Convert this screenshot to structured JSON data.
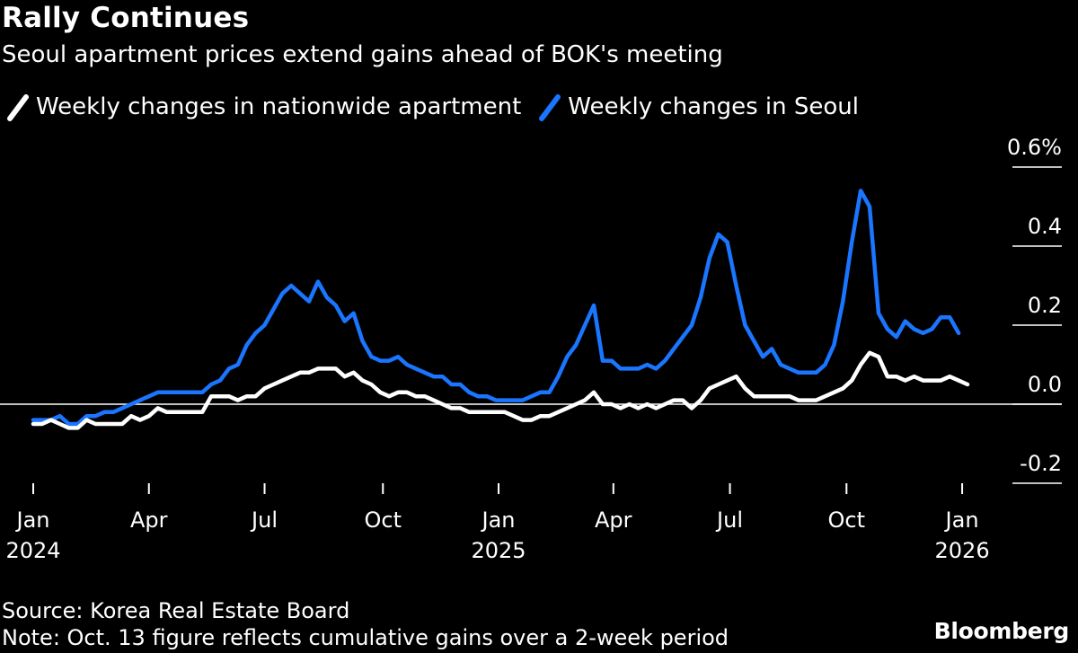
{
  "header": {
    "title": "Rally Continues",
    "subtitle": "Seoul apartment prices extend gains ahead of BOK's meeting"
  },
  "legend": [
    {
      "label": "Weekly changes in nationwide apartment",
      "color": "#ffffff"
    },
    {
      "label": "Weekly changes in Seoul",
      "color": "#1a75ff"
    }
  ],
  "footer": {
    "source": "Source: Korea Real Estate Board",
    "note": "Note: Oct. 13 figure reflects cumulative gains over a 2-week period",
    "brand": "Bloomberg"
  },
  "chart_data": {
    "type": "line",
    "title": "Rally Continues",
    "subtitle": "Seoul apartment prices extend gains ahead of BOK's meeting",
    "x_unit": "weeks since first week of Jan 2024",
    "x_range": [
      0,
      105
    ],
    "ylim": [
      -0.2,
      0.6
    ],
    "y_ticks": [
      {
        "value": 0.6,
        "label": "0.6%"
      },
      {
        "value": 0.4,
        "label": "0.4"
      },
      {
        "value": 0.2,
        "label": "0.2"
      },
      {
        "value": 0.0,
        "label": "0.0"
      },
      {
        "value": -0.2,
        "label": "-0.2"
      }
    ],
    "x_ticks": [
      {
        "x": 0,
        "label": "Jan",
        "sublabel": "2024"
      },
      {
        "x": 13,
        "label": "Apr",
        "sublabel": ""
      },
      {
        "x": 26,
        "label": "Jul",
        "sublabel": ""
      },
      {
        "x": 39.3,
        "label": "Oct",
        "sublabel": ""
      },
      {
        "x": 52.3,
        "label": "Jan",
        "sublabel": "2025"
      },
      {
        "x": 65.2,
        "label": "Apr",
        "sublabel": ""
      },
      {
        "x": 78.3,
        "label": "Jul",
        "sublabel": ""
      },
      {
        "x": 91.4,
        "label": "Oct",
        "sublabel": ""
      },
      {
        "x": 104.4,
        "label": "Jan",
        "sublabel": "2026"
      }
    ],
    "zero_line": true,
    "legend_position": "top-left",
    "series": [
      {
        "name": "Weekly changes in Seoul",
        "color": "#1a75ff",
        "points": [
          [
            0,
            -0.04
          ],
          [
            2,
            -0.04
          ],
          [
            3,
            -0.03
          ],
          [
            4,
            -0.05
          ],
          [
            5,
            -0.05
          ],
          [
            6,
            -0.03
          ],
          [
            7,
            -0.03
          ],
          [
            8,
            -0.02
          ],
          [
            9,
            -0.02
          ],
          [
            10,
            -0.01
          ],
          [
            11,
            0.0
          ],
          [
            12,
            0.01
          ],
          [
            13,
            0.02
          ],
          [
            14,
            0.03
          ],
          [
            15,
            0.03
          ],
          [
            16,
            0.03
          ],
          [
            17,
            0.03
          ],
          [
            18,
            0.03
          ],
          [
            19,
            0.03
          ],
          [
            20,
            0.05
          ],
          [
            21,
            0.06
          ],
          [
            22,
            0.09
          ],
          [
            23,
            0.1
          ],
          [
            24,
            0.15
          ],
          [
            25,
            0.18
          ],
          [
            26,
            0.2
          ],
          [
            27,
            0.24
          ],
          [
            28,
            0.28
          ],
          [
            29,
            0.3
          ],
          [
            30,
            0.28
          ],
          [
            31,
            0.26
          ],
          [
            32,
            0.31
          ],
          [
            33,
            0.27
          ],
          [
            34,
            0.25
          ],
          [
            35,
            0.21
          ],
          [
            36,
            0.23
          ],
          [
            37,
            0.16
          ],
          [
            38,
            0.12
          ],
          [
            39,
            0.11
          ],
          [
            40,
            0.11
          ],
          [
            41,
            0.12
          ],
          [
            42,
            0.1
          ],
          [
            43,
            0.09
          ],
          [
            44,
            0.08
          ],
          [
            45,
            0.07
          ],
          [
            46,
            0.07
          ],
          [
            47,
            0.05
          ],
          [
            48,
            0.05
          ],
          [
            49,
            0.03
          ],
          [
            50,
            0.02
          ],
          [
            51,
            0.02
          ],
          [
            52,
            0.01
          ],
          [
            53,
            0.01
          ],
          [
            54,
            0.01
          ],
          [
            55,
            0.01
          ],
          [
            56,
            0.02
          ],
          [
            57,
            0.03
          ],
          [
            58,
            0.03
          ],
          [
            59,
            0.07
          ],
          [
            60,
            0.12
          ],
          [
            61,
            0.15
          ],
          [
            62,
            0.2
          ],
          [
            63,
            0.25
          ],
          [
            64,
            0.11
          ],
          [
            65,
            0.11
          ],
          [
            66,
            0.09
          ],
          [
            67,
            0.09
          ],
          [
            68,
            0.09
          ],
          [
            69,
            0.1
          ],
          [
            70,
            0.09
          ],
          [
            71,
            0.11
          ],
          [
            72,
            0.14
          ],
          [
            73,
            0.17
          ],
          [
            74,
            0.2
          ],
          [
            75,
            0.27
          ],
          [
            76,
            0.37
          ],
          [
            77,
            0.43
          ],
          [
            78,
            0.41
          ],
          [
            79,
            0.3
          ],
          [
            80,
            0.2
          ],
          [
            81,
            0.16
          ],
          [
            82,
            0.12
          ],
          [
            83,
            0.14
          ],
          [
            84,
            0.1
          ],
          [
            85,
            0.09
          ],
          [
            86,
            0.08
          ],
          [
            87,
            0.08
          ],
          [
            88,
            0.08
          ],
          [
            89,
            0.1
          ],
          [
            90,
            0.15
          ],
          [
            91,
            0.26
          ],
          [
            92,
            0.41
          ],
          [
            93,
            0.54
          ],
          [
            94,
            0.5
          ],
          [
            95,
            0.23
          ],
          [
            96,
            0.19
          ],
          [
            97,
            0.17
          ],
          [
            98,
            0.21
          ],
          [
            99,
            0.19
          ],
          [
            100,
            0.18
          ],
          [
            101,
            0.19
          ],
          [
            102,
            0.22
          ],
          [
            103,
            0.22
          ],
          [
            104,
            0.18
          ]
        ]
      },
      {
        "name": "Weekly changes in nationwide apartment",
        "color": "#ffffff",
        "points": [
          [
            0,
            -0.05
          ],
          [
            1,
            -0.05
          ],
          [
            2,
            -0.04
          ],
          [
            3,
            -0.05
          ],
          [
            4,
            -0.06
          ],
          [
            5,
            -0.06
          ],
          [
            6,
            -0.04
          ],
          [
            7,
            -0.05
          ],
          [
            8,
            -0.05
          ],
          [
            9,
            -0.05
          ],
          [
            10,
            -0.05
          ],
          [
            11,
            -0.03
          ],
          [
            12,
            -0.04
          ],
          [
            13,
            -0.03
          ],
          [
            14,
            -0.01
          ],
          [
            15,
            -0.02
          ],
          [
            16,
            -0.02
          ],
          [
            17,
            -0.02
          ],
          [
            18,
            -0.02
          ],
          [
            19,
            -0.02
          ],
          [
            20,
            0.02
          ],
          [
            21,
            0.02
          ],
          [
            22,
            0.02
          ],
          [
            23,
            0.01
          ],
          [
            24,
            0.02
          ],
          [
            25,
            0.02
          ],
          [
            26,
            0.04
          ],
          [
            27,
            0.05
          ],
          [
            28,
            0.06
          ],
          [
            29,
            0.07
          ],
          [
            30,
            0.08
          ],
          [
            31,
            0.08
          ],
          [
            32,
            0.09
          ],
          [
            33,
            0.09
          ],
          [
            34,
            0.09
          ],
          [
            35,
            0.07
          ],
          [
            36,
            0.08
          ],
          [
            37,
            0.06
          ],
          [
            38,
            0.05
          ],
          [
            39,
            0.03
          ],
          [
            40,
            0.02
          ],
          [
            41,
            0.03
          ],
          [
            42,
            0.03
          ],
          [
            43,
            0.02
          ],
          [
            44,
            0.02
          ],
          [
            45,
            0.01
          ],
          [
            46,
            0.0
          ],
          [
            47,
            -0.01
          ],
          [
            48,
            -0.01
          ],
          [
            49,
            -0.02
          ],
          [
            50,
            -0.02
          ],
          [
            51,
            -0.02
          ],
          [
            52,
            -0.02
          ],
          [
            53,
            -0.02
          ],
          [
            54,
            -0.03
          ],
          [
            55,
            -0.04
          ],
          [
            56,
            -0.04
          ],
          [
            57,
            -0.03
          ],
          [
            58,
            -0.03
          ],
          [
            59,
            -0.02
          ],
          [
            60,
            -0.01
          ],
          [
            61,
            0.0
          ],
          [
            62,
            0.01
          ],
          [
            63,
            0.03
          ],
          [
            64,
            0.0
          ],
          [
            65,
            0.0
          ],
          [
            66,
            -0.01
          ],
          [
            67,
            0.0
          ],
          [
            68,
            -0.01
          ],
          [
            69,
            0.0
          ],
          [
            70,
            -0.01
          ],
          [
            71,
            0.0
          ],
          [
            72,
            0.01
          ],
          [
            73,
            0.01
          ],
          [
            74,
            -0.01
          ],
          [
            75,
            0.01
          ],
          [
            76,
            0.04
          ],
          [
            77,
            0.05
          ],
          [
            78,
            0.06
          ],
          [
            79,
            0.07
          ],
          [
            80,
            0.04
          ],
          [
            81,
            0.02
          ],
          [
            82,
            0.02
          ],
          [
            83,
            0.02
          ],
          [
            84,
            0.02
          ],
          [
            85,
            0.02
          ],
          [
            86,
            0.01
          ],
          [
            87,
            0.01
          ],
          [
            88,
            0.01
          ],
          [
            89,
            0.02
          ],
          [
            90,
            0.03
          ],
          [
            91,
            0.04
          ],
          [
            92,
            0.06
          ],
          [
            93,
            0.1
          ],
          [
            94,
            0.13
          ],
          [
            95,
            0.12
          ],
          [
            96,
            0.07
          ],
          [
            97,
            0.07
          ],
          [
            98,
            0.06
          ],
          [
            99,
            0.07
          ],
          [
            100,
            0.06
          ],
          [
            101,
            0.06
          ],
          [
            102,
            0.06
          ],
          [
            103,
            0.07
          ],
          [
            104,
            0.06
          ],
          [
            105,
            0.05
          ]
        ]
      }
    ]
  }
}
